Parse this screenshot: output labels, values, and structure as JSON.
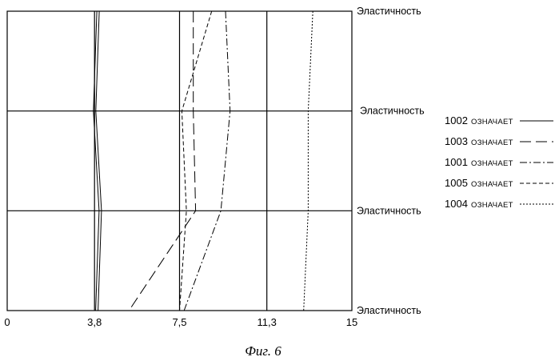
{
  "caption": "Фиг. 6",
  "chart_data": {
    "type": "line",
    "orientation": "horizontal-profile",
    "x_ticks": [
      "0",
      "3,8",
      "7,5",
      "11,3",
      "15"
    ],
    "xlim": [
      0,
      15
    ],
    "row_labels": [
      "Эластичность",
      "Эластичность",
      "Эластичность",
      "Эластичность"
    ],
    "rows": [
      0,
      1,
      2,
      3
    ],
    "legend_placement": "right",
    "series": [
      {
        "name": "1002",
        "legend_text": "ОЗНАЧАЕТ",
        "dash": "solid",
        "color": "#000000",
        "values": [
          3.9,
          3.75,
          4.0,
          3.85
        ]
      },
      {
        "name": "1003",
        "legend_text": "ОЗНАЧАЕТ",
        "dash": "longdash",
        "color": "#000000",
        "values": [
          8.1,
          8.1,
          8.2,
          5.3
        ]
      },
      {
        "name": "1001",
        "legend_text": "ОЗНАЧАЕТ",
        "dash": "dashdot",
        "color": "#000000",
        "values": [
          9.5,
          9.7,
          9.3,
          7.7
        ]
      },
      {
        "name": "1005",
        "legend_text": "ОЗНАЧАЕТ",
        "dash": "dash",
        "color": "#000000",
        "values": [
          8.9,
          7.6,
          7.8,
          7.5
        ]
      },
      {
        "name": "1004",
        "legend_text": "ОЗНАЧАЕТ",
        "dash": "dotted",
        "color": "#000000",
        "values": [
          13.3,
          13.1,
          13.1,
          12.9
        ]
      }
    ]
  }
}
